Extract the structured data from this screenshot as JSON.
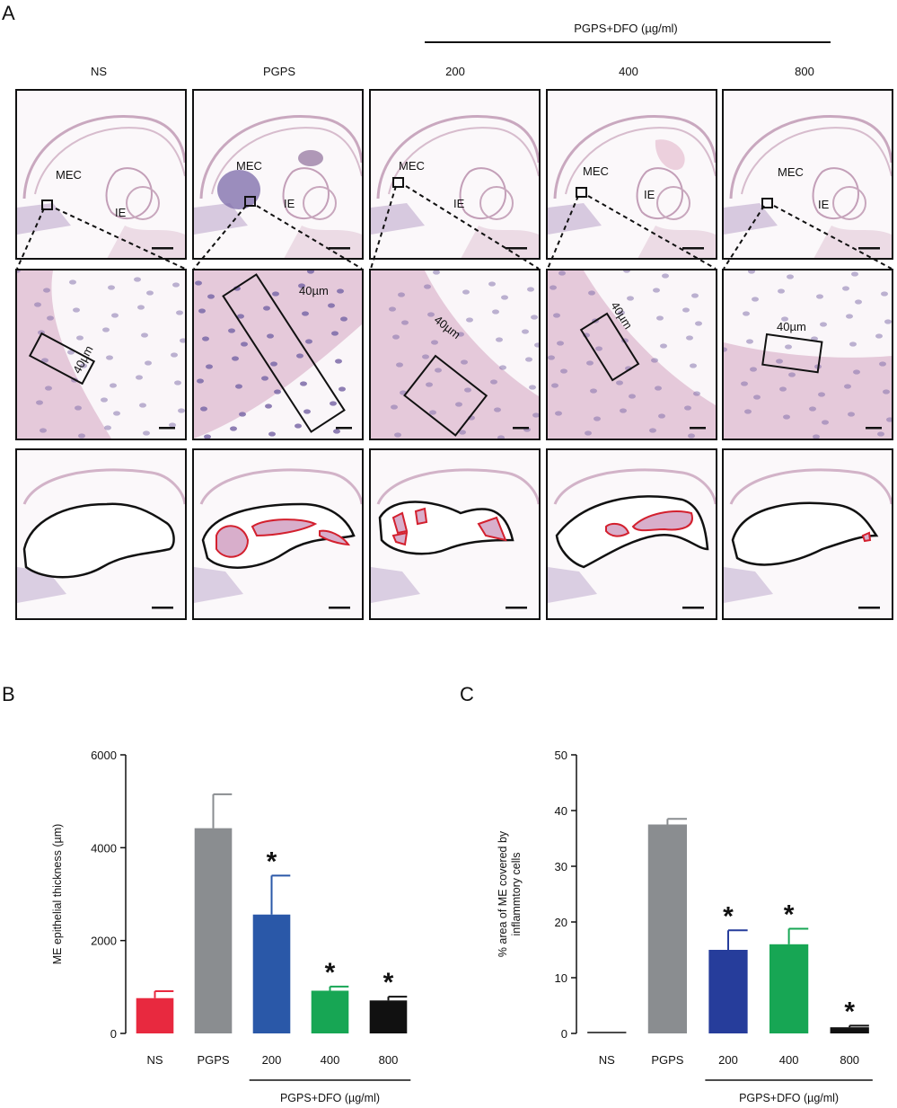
{
  "panel_labels": {
    "a": "A",
    "b": "B",
    "c": "C"
  },
  "panel_a": {
    "group_label": "PGPS+DFO (µg/ml)",
    "columns": [
      "NS",
      "PGPS",
      "200",
      "400",
      "800"
    ],
    "region_labels": {
      "mec": "MEC",
      "ie": "IE"
    },
    "measure_label": "40µm"
  },
  "colors": {
    "NS": "#e8293f",
    "PGPS": "#8a8d90",
    "200_B": "#2a58a8",
    "200_C": "#263d9b",
    "400": "#17a654",
    "800": "#111111",
    "outline_red": "#d3202e",
    "tissue": "#e2c4d6",
    "tissue_dark": "#7b6aa8"
  },
  "chart_data": [
    {
      "panel": "B",
      "type": "bar",
      "categories": [
        "NS",
        "PGPS",
        "200",
        "400",
        "800"
      ],
      "values": [
        760,
        4420,
        2560,
        920,
        710
      ],
      "errors": [
        150,
        730,
        840,
        90,
        80
      ],
      "significant": [
        false,
        false,
        true,
        true,
        true
      ],
      "ylabel": "ME epithelial  thickness (µm)",
      "xlabel": "PGPS+DFO (µg/ml)",
      "ylim": [
        0,
        6000
      ],
      "yticks": [
        "0",
        "2000",
        "4000",
        "6000"
      ],
      "significance_mark": "*"
    },
    {
      "panel": "C",
      "type": "bar",
      "categories": [
        "NS",
        "PGPS",
        "200",
        "400",
        "800"
      ],
      "values": [
        0,
        37.5,
        15,
        16,
        1.1
      ],
      "errors": [
        0,
        1.0,
        3.5,
        2.8,
        0.3
      ],
      "significant": [
        false,
        false,
        true,
        true,
        true
      ],
      "ylabel": [
        "% area of ME covered by",
        "inflammtory cells"
      ],
      "xlabel": "PGPS+DFO (µg/ml)",
      "ylim": [
        0,
        50
      ],
      "yticks": [
        "0",
        "10",
        "20",
        "30",
        "40",
        "50"
      ],
      "significance_mark": "*"
    }
  ]
}
